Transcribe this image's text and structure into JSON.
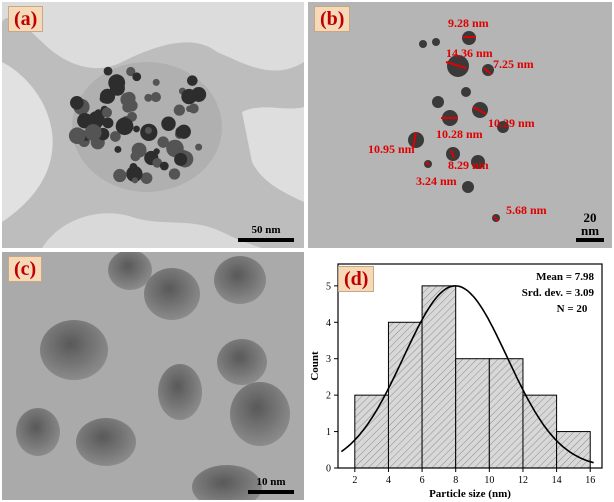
{
  "figure": {
    "panels": {
      "a": {
        "label": "(a)",
        "scale": "50 nm"
      },
      "b": {
        "label": "(b)",
        "scale": "20 nm",
        "measurements": [
          "9.28 nm",
          "14.36 nm",
          "7.25 nm",
          "10.29 nm",
          "10.28 nm",
          "10.95 nm",
          "8.29 nm",
          "3.24 nm",
          "5.68 nm"
        ]
      },
      "c": {
        "label": "(c)",
        "scale": "10 nm"
      },
      "d": {
        "label": "(d)"
      }
    }
  },
  "chart_data": {
    "type": "bar",
    "title": "",
    "xlabel": "Particle size (nm)",
    "ylabel": "Count",
    "bin_edges": [
      2,
      4,
      6,
      8,
      10,
      12,
      14,
      16
    ],
    "values": [
      2,
      4,
      5,
      3,
      3,
      2,
      1
    ],
    "xlim": [
      1,
      16.7
    ],
    "ylim": [
      0,
      5.6
    ],
    "xticks": [
      "2",
      "4",
      "6",
      "8",
      "10",
      "12",
      "14",
      "16"
    ],
    "yticks": [
      "0",
      "1",
      "2",
      "3",
      "4",
      "5"
    ],
    "fit_curve": {
      "type": "normal",
      "mean": 7.98,
      "sd": 3.09
    },
    "stats": [
      "Mean = 7.98",
      "Srd. dev. = 3.09",
      "N = 20"
    ],
    "bar_fill": "#d8d8d8",
    "hatch": "diagonal",
    "grid": false
  }
}
